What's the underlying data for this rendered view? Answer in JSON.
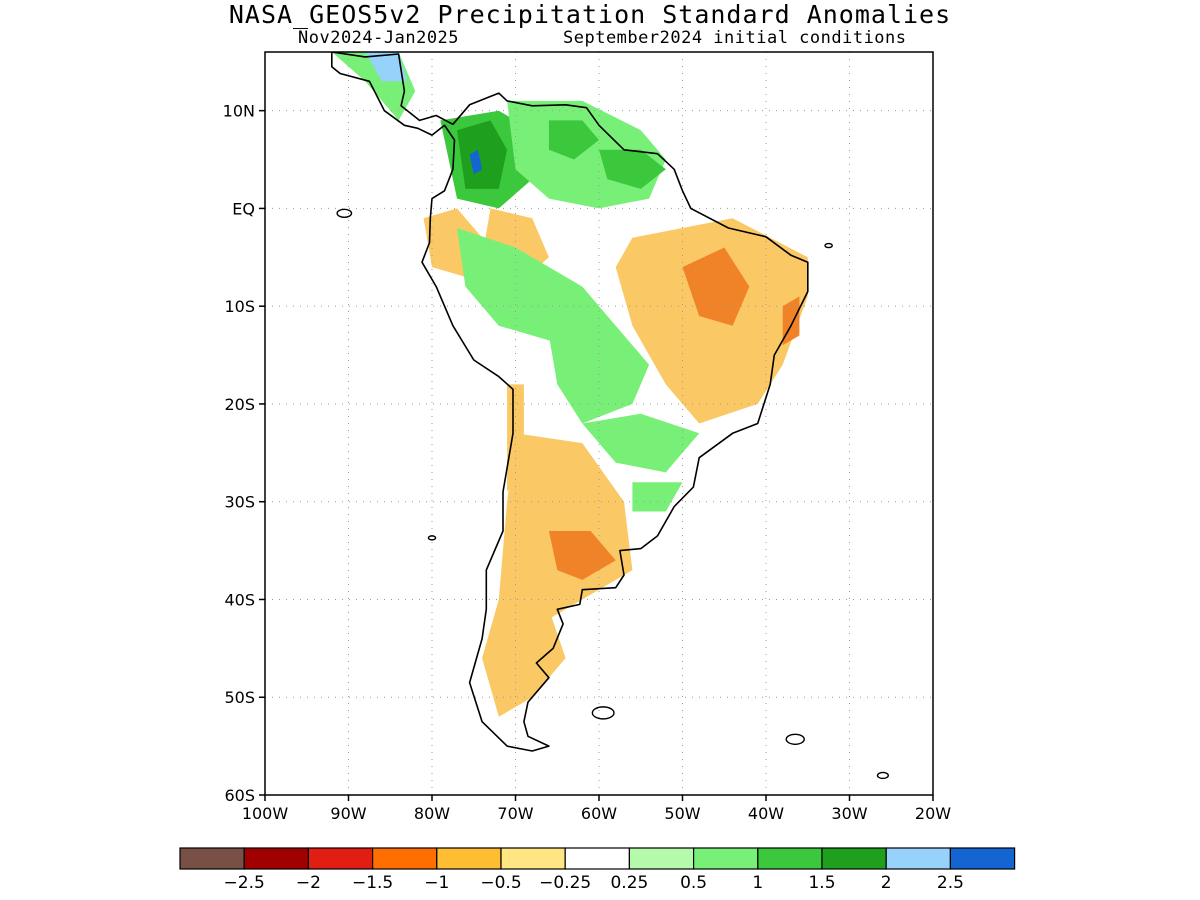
{
  "title": "NASA_GEOS5v2 Precipitation Standard Anomalies",
  "subtitle_left": "Nov2024-Jan2025",
  "subtitle_right": "September2024 initial conditions",
  "map": {
    "lon_range": [
      -100,
      -20
    ],
    "lat_range": [
      -60,
      16
    ],
    "lat_ticks": [
      {
        "lat": 10,
        "label": "10N"
      },
      {
        "lat": 0,
        "label": "EQ"
      },
      {
        "lat": -10,
        "label": "10S"
      },
      {
        "lat": -20,
        "label": "20S"
      },
      {
        "lat": -30,
        "label": "30S"
      },
      {
        "lat": -40,
        "label": "40S"
      },
      {
        "lat": -50,
        "label": "50S"
      },
      {
        "lat": -60,
        "label": "60S"
      }
    ],
    "lon_ticks": [
      {
        "lon": -100,
        "label": "100W"
      },
      {
        "lon": -90,
        "label": "90W"
      },
      {
        "lon": -80,
        "label": "80W"
      },
      {
        "lon": -70,
        "label": "70W"
      },
      {
        "lon": -60,
        "label": "60W"
      },
      {
        "lon": -50,
        "label": "50W"
      },
      {
        "lon": -40,
        "label": "40W"
      },
      {
        "lon": -30,
        "label": "30W"
      },
      {
        "lon": -20,
        "label": "20W"
      }
    ],
    "grid": "dotted",
    "anomaly_regions": [
      {
        "name": "colombia-wet",
        "color": "#3cc83c",
        "poly": [
          [
            -79,
            9
          ],
          [
            -72,
            10
          ],
          [
            -68,
            8
          ],
          [
            -68,
            3
          ],
          [
            -72,
            0
          ],
          [
            -77,
            1
          ]
        ]
      },
      {
        "name": "colombia-wet-core",
        "color": "#1ea01e",
        "poly": [
          [
            -77,
            8
          ],
          [
            -73,
            9
          ],
          [
            -71,
            6
          ],
          [
            -72,
            2
          ],
          [
            -76,
            2
          ]
        ]
      },
      {
        "name": "colombia-blue",
        "color": "#1464d2",
        "poly": [
          [
            -75.5,
            5.5
          ],
          [
            -74.5,
            6
          ],
          [
            -74,
            4
          ],
          [
            -75,
            3.5
          ]
        ]
      },
      {
        "name": "venezuela-wet",
        "color": "#78f078",
        "poly": [
          [
            -71,
            11
          ],
          [
            -62,
            11
          ],
          [
            -55,
            8
          ],
          [
            -52,
            5
          ],
          [
            -54,
            1
          ],
          [
            -60,
            0
          ],
          [
            -66,
            1
          ],
          [
            -70,
            4
          ]
        ]
      },
      {
        "name": "venezuela-wet-core",
        "color": "#3cc83c",
        "poly": [
          [
            -66,
            9
          ],
          [
            -62,
            9
          ],
          [
            -60,
            7
          ],
          [
            -63,
            5
          ],
          [
            -66,
            6
          ]
        ]
      },
      {
        "name": "guyana-wet",
        "color": "#3cc83c",
        "poly": [
          [
            -60,
            6
          ],
          [
            -55,
            6
          ],
          [
            -52,
            4
          ],
          [
            -55,
            2
          ],
          [
            -59,
            3
          ]
        ]
      },
      {
        "name": "centralamerica-wet",
        "color": "#78f078",
        "poly": [
          [
            -92,
            16
          ],
          [
            -84,
            16
          ],
          [
            -82,
            12
          ],
          [
            -84,
            9
          ],
          [
            -88,
            13
          ]
        ]
      },
      {
        "name": "centralamerica-blue",
        "color": "#96d2fa",
        "poly": [
          [
            -88,
            16
          ],
          [
            -84,
            16
          ],
          [
            -83,
            13
          ],
          [
            -86,
            13
          ]
        ]
      },
      {
        "name": "ecuador-dry",
        "color": "#fac864",
        "poly": [
          [
            -81,
            -1
          ],
          [
            -77,
            0
          ],
          [
            -74,
            -3
          ],
          [
            -76,
            -7
          ],
          [
            -80,
            -6
          ]
        ]
      },
      {
        "name": "amazon-dry",
        "color": "#fac864",
        "poly": [
          [
            -73,
            0
          ],
          [
            -68,
            -1
          ],
          [
            -66,
            -5
          ],
          [
            -70,
            -8
          ],
          [
            -74,
            -5
          ]
        ]
      },
      {
        "name": "amazon-wet",
        "color": "#78f078",
        "poly": [
          [
            -77,
            -2
          ],
          [
            -70,
            -4
          ],
          [
            -62,
            -8
          ],
          [
            -58,
            -12
          ],
          [
            -64,
            -14
          ],
          [
            -72,
            -12
          ],
          [
            -76,
            -8
          ]
        ]
      },
      {
        "name": "brazil-dry",
        "color": "#fac864",
        "poly": [
          [
            -56,
            -3
          ],
          [
            -44,
            -1
          ],
          [
            -35,
            -5
          ],
          [
            -35,
            -9
          ],
          [
            -38,
            -16
          ],
          [
            -41,
            -20
          ],
          [
            -48,
            -22
          ],
          [
            -52,
            -18
          ],
          [
            -56,
            -12
          ],
          [
            -58,
            -6
          ]
        ]
      },
      {
        "name": "brazil-dry-core",
        "color": "#f08228",
        "poly": [
          [
            -50,
            -6
          ],
          [
            -45,
            -4
          ],
          [
            -42,
            -8
          ],
          [
            -44,
            -12
          ],
          [
            -48,
            -11
          ]
        ]
      },
      {
        "name": "ne-brazil-dry",
        "color": "#f08228",
        "poly": [
          [
            -38,
            -10
          ],
          [
            -36,
            -9
          ],
          [
            -36,
            -13
          ],
          [
            -38,
            -14
          ]
        ]
      },
      {
        "name": "bolivia-wet",
        "color": "#78f078",
        "poly": [
          [
            -66,
            -13
          ],
          [
            -58,
            -12
          ],
          [
            -54,
            -16
          ],
          [
            -56,
            -20
          ],
          [
            -62,
            -22
          ],
          [
            -65,
            -18
          ]
        ]
      },
      {
        "name": "paraguay-wet",
        "color": "#78f078",
        "poly": [
          [
            -62,
            -22
          ],
          [
            -55,
            -21
          ],
          [
            -48,
            -23
          ],
          [
            -52,
            -27
          ],
          [
            -58,
            -26
          ]
        ]
      },
      {
        "name": "uruguay-wet",
        "color": "#78f078",
        "poly": [
          [
            -56,
            -28
          ],
          [
            -50,
            -28
          ],
          [
            -52,
            -31
          ],
          [
            -56,
            -31
          ]
        ]
      },
      {
        "name": "chile-dry",
        "color": "#fac864",
        "poly": [
          [
            -71,
            -18
          ],
          [
            -69,
            -18
          ],
          [
            -69,
            -26
          ],
          [
            -71,
            -29
          ]
        ]
      },
      {
        "name": "argentina-dry",
        "color": "#fac864",
        "poly": [
          [
            -70,
            -23
          ],
          [
            -62,
            -24
          ],
          [
            -57,
            -30
          ],
          [
            -56,
            -37
          ],
          [
            -62,
            -40
          ],
          [
            -68,
            -43
          ],
          [
            -72,
            -40
          ],
          [
            -71,
            -30
          ]
        ]
      },
      {
        "name": "argentina-dry-core",
        "color": "#f08228",
        "poly": [
          [
            -66,
            -33
          ],
          [
            -61,
            -33
          ],
          [
            -58,
            -36
          ],
          [
            -62,
            -38
          ],
          [
            -65,
            -37
          ]
        ]
      },
      {
        "name": "patagonia-dry",
        "color": "#fac864",
        "poly": [
          [
            -72,
            -40
          ],
          [
            -66,
            -41
          ],
          [
            -64,
            -46
          ],
          [
            -68,
            -50
          ],
          [
            -72,
            -52
          ],
          [
            -74,
            -46
          ]
        ]
      }
    ]
  },
  "colorbar": {
    "colors": [
      "#785046",
      "#a00000",
      "#e11e14",
      "#ff6e00",
      "#ffbe32",
      "#ffe682",
      "#ffffff",
      "#b4faaa",
      "#78f078",
      "#3cc83c",
      "#1ea01e",
      "#96d2fa",
      "#1464d2"
    ],
    "labels": [
      "-2.5",
      "-2",
      "-1.5",
      "-1",
      "-0.5",
      "-0.25",
      "0.25",
      "0.5",
      "1",
      "1.5",
      "2",
      "2.5"
    ]
  }
}
